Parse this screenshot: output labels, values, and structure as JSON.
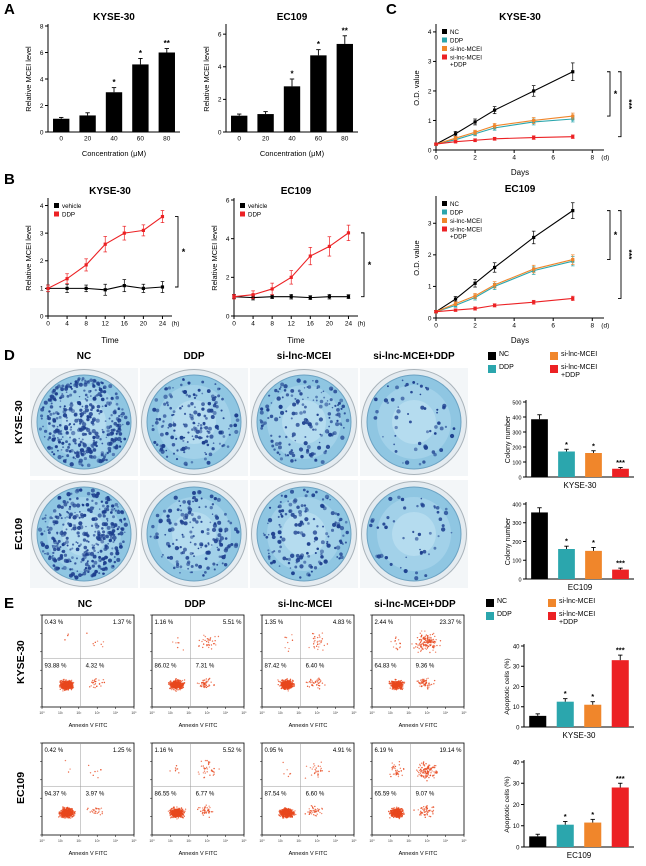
{
  "figure": {
    "panel_labels": {
      "A": "A",
      "B": "B",
      "C": "C",
      "D": "D",
      "E": "E"
    }
  },
  "conditions": [
    "NC",
    "DDP",
    "si-lnc-MCEI",
    "si-lnc-MCEI+DDP"
  ],
  "cell_lines": [
    "KYSE-30",
    "EC109"
  ],
  "colors": {
    "nc": "#000000",
    "ddp": "#2ba6ad",
    "si_lnc_mcei": "#f0862b",
    "si_lnc_mcei_ddp": "#ec2124",
    "flow_dots": "#e8481e",
    "colony_dots": "#1d3f8e",
    "dish_base": "#8fc6e2"
  },
  "legends": {
    "condition_legend": {
      "items": [
        {
          "label": "NC",
          "color": "#000000"
        },
        {
          "label": "DDP",
          "color": "#2ba6ad"
        },
        {
          "label": "si-lnc-MCEI",
          "color": "#f0862b"
        },
        {
          "label": "si-lnc-MCEI",
          "label2": "+DDP",
          "color": "#ec2124"
        }
      ]
    }
  },
  "chart_data": [
    {
      "id": "A_KYSE30",
      "type": "bar",
      "title": "KYSE-30",
      "ylabel": "Relative MCEI level",
      "xlabel": "Concentration (μM)",
      "categories": [
        "0",
        "20",
        "40",
        "60",
        "80"
      ],
      "values": [
        1.0,
        1.25,
        3.0,
        5.1,
        6.0
      ],
      "errors": [
        0.1,
        0.2,
        0.35,
        0.45,
        0.3
      ],
      "sig": [
        "",
        "",
        "*",
        "*",
        "**"
      ],
      "ylim": [
        0,
        8
      ],
      "yticks": [
        0,
        2,
        4,
        6,
        8
      ],
      "bar_color": "#000000"
    },
    {
      "id": "A_EC109",
      "type": "bar",
      "title": "EC109",
      "ylabel": "Relative MCEI level",
      "xlabel": "Concentration (μM)",
      "categories": [
        "0",
        "20",
        "40",
        "60",
        "80"
      ],
      "values": [
        1.0,
        1.1,
        2.8,
        4.7,
        5.4
      ],
      "errors": [
        0.1,
        0.15,
        0.45,
        0.35,
        0.5
      ],
      "sig": [
        "",
        "",
        "*",
        "*",
        "**"
      ],
      "ylim": [
        0,
        6.5
      ],
      "yticks": [
        0,
        2,
        4,
        6
      ],
      "bar_color": "#000000"
    },
    {
      "id": "B_KYSE30",
      "type": "line",
      "title": "KYSE-30",
      "ylabel": "Relative MCEI level",
      "xlabel": "Time",
      "xunit": "(h)",
      "x": [
        0,
        4,
        8,
        12,
        16,
        20,
        24
      ],
      "xticks": [
        0,
        4,
        8,
        12,
        16,
        20,
        24
      ],
      "xlim": [
        0,
        26
      ],
      "ylim": [
        0,
        4.2
      ],
      "yticks": [
        0,
        1,
        2,
        3,
        4
      ],
      "series": [
        {
          "name": "vehicle",
          "color": "#000000",
          "values": [
            1.0,
            1.0,
            1.0,
            0.95,
            1.1,
            1.0,
            1.05
          ],
          "errors": [
            0.12,
            0.15,
            0.12,
            0.2,
            0.22,
            0.15,
            0.2
          ]
        },
        {
          "name": "DDP",
          "color": "#ec2124",
          "values": [
            1.0,
            1.35,
            1.85,
            2.6,
            3.0,
            3.1,
            3.6
          ],
          "errors": [
            0.12,
            0.18,
            0.22,
            0.28,
            0.25,
            0.2,
            0.22
          ]
        }
      ],
      "sig": [
        {
          "series": [
            0,
            1
          ],
          "label": "*"
        }
      ]
    },
    {
      "id": "B_EC109",
      "type": "line",
      "title": "EC109",
      "ylabel": "Relative MCEI level",
      "xlabel": "Time",
      "xunit": "(h)",
      "x": [
        0,
        4,
        8,
        12,
        16,
        20,
        24
      ],
      "xticks": [
        0,
        4,
        8,
        12,
        16,
        20,
        24
      ],
      "xlim": [
        0,
        26
      ],
      "ylim": [
        0,
        6
      ],
      "yticks": [
        0,
        2,
        4,
        6
      ],
      "series": [
        {
          "name": "vehicle",
          "color": "#000000",
          "values": [
            1.0,
            0.95,
            1.0,
            1.0,
            0.95,
            1.0,
            1.0
          ],
          "errors": [
            0.1,
            0.12,
            0.1,
            0.12,
            0.1,
            0.12,
            0.1
          ]
        },
        {
          "name": "DDP",
          "color": "#ec2124",
          "values": [
            1.0,
            1.1,
            1.4,
            2.0,
            3.1,
            3.6,
            4.3
          ],
          "errors": [
            0.12,
            0.2,
            0.3,
            0.35,
            0.45,
            0.5,
            0.4
          ]
        }
      ],
      "sig": [
        {
          "series": [
            0,
            1
          ],
          "label": "*"
        }
      ]
    },
    {
      "id": "C_KYSE30",
      "type": "line",
      "title": "KYSE-30",
      "ylabel": "O.D. value",
      "xlabel": "Days",
      "xunit": "(d)",
      "x": [
        0,
        1,
        2,
        3,
        5,
        7
      ],
      "xticks": [
        0,
        2,
        4,
        6,
        8
      ],
      "xlim": [
        0,
        8.6
      ],
      "ylim": [
        0,
        4.2
      ],
      "yticks": [
        0,
        1,
        2,
        3,
        4
      ],
      "series": [
        {
          "name": "NC",
          "color": "#000000",
          "values": [
            0.2,
            0.55,
            0.95,
            1.35,
            2.0,
            2.65
          ],
          "errors": [
            0.04,
            0.08,
            0.1,
            0.12,
            0.18,
            0.3
          ]
        },
        {
          "name": "DDP",
          "color": "#2ba6ad",
          "values": [
            0.2,
            0.35,
            0.55,
            0.75,
            0.95,
            1.05
          ],
          "errors": [
            0.04,
            0.06,
            0.07,
            0.08,
            0.1,
            0.1
          ]
        },
        {
          "name": "si-lnc-MCEI",
          "color": "#f0862b",
          "values": [
            0.2,
            0.4,
            0.6,
            0.82,
            1.0,
            1.15
          ],
          "errors": [
            0.04,
            0.06,
            0.07,
            0.08,
            0.1,
            0.1
          ]
        },
        {
          "name": "si-lnc-MCEI+DDP",
          "color": "#ec2124",
          "values": [
            0.2,
            0.28,
            0.33,
            0.38,
            0.42,
            0.45
          ],
          "errors": [
            0.03,
            0.04,
            0.05,
            0.05,
            0.06,
            0.06
          ]
        }
      ],
      "sig": [
        {
          "series": [
            0,
            2
          ],
          "label": "*"
        },
        {
          "series": [
            0,
            3
          ],
          "label": "***"
        }
      ]
    },
    {
      "id": "C_EC109",
      "type": "line",
      "title": "EC109",
      "ylabel": "O.D. value",
      "xlabel": "Days",
      "xunit": "(d)",
      "x": [
        0,
        1,
        2,
        3,
        5,
        7
      ],
      "xticks": [
        0,
        2,
        4,
        6,
        8
      ],
      "xlim": [
        0,
        8.6
      ],
      "ylim": [
        0,
        3.8
      ],
      "yticks": [
        0,
        1,
        2,
        3
      ],
      "series": [
        {
          "name": "NC",
          "color": "#000000",
          "values": [
            0.2,
            0.6,
            1.1,
            1.6,
            2.55,
            3.4
          ],
          "errors": [
            0.04,
            0.08,
            0.12,
            0.15,
            0.2,
            0.25
          ]
        },
        {
          "name": "DDP",
          "color": "#2ba6ad",
          "values": [
            0.2,
            0.4,
            0.65,
            1.0,
            1.5,
            1.8
          ],
          "errors": [
            0.04,
            0.06,
            0.08,
            0.1,
            0.12,
            0.15
          ]
        },
        {
          "name": "si-lnc-MCEI",
          "color": "#f0862b",
          "values": [
            0.2,
            0.45,
            0.7,
            1.05,
            1.55,
            1.85
          ],
          "errors": [
            0.04,
            0.06,
            0.08,
            0.1,
            0.12,
            0.15
          ]
        },
        {
          "name": "si-lnc-MCEI+DDP",
          "color": "#ec2124",
          "values": [
            0.2,
            0.25,
            0.3,
            0.4,
            0.5,
            0.62
          ],
          "errors": [
            0.03,
            0.04,
            0.05,
            0.05,
            0.06,
            0.07
          ]
        }
      ],
      "sig": [
        {
          "series": [
            0,
            2
          ],
          "label": "*"
        },
        {
          "series": [
            0,
            3
          ],
          "label": "***"
        }
      ]
    },
    {
      "id": "D_KYSE30",
      "type": "bar",
      "title_below": "KYSE-30",
      "ylabel": "Colony number",
      "values": [
        385,
        170,
        160,
        55
      ],
      "errors": [
        30,
        15,
        15,
        8
      ],
      "sig": [
        "",
        "*",
        "*",
        "***"
      ],
      "ylim": [
        0,
        500
      ],
      "yticks": [
        0,
        100,
        200,
        300,
        400,
        500
      ],
      "colors": [
        "#000000",
        "#2ba6ad",
        "#f0862b",
        "#ec2124"
      ]
    },
    {
      "id": "D_EC109",
      "type": "bar",
      "title_below": "EC109",
      "ylabel": "Colony number",
      "values": [
        355,
        160,
        150,
        50
      ],
      "errors": [
        25,
        15,
        18,
        8
      ],
      "sig": [
        "",
        "*",
        "*",
        "***"
      ],
      "ylim": [
        0,
        400
      ],
      "yticks": [
        0,
        100,
        200,
        300,
        400
      ],
      "colors": [
        "#000000",
        "#2ba6ad",
        "#f0862b",
        "#ec2124"
      ]
    },
    {
      "id": "E_KYSE30",
      "type": "bar",
      "title_below": "KYSE-30",
      "ylabel": "Apoptotic cells (%)",
      "values": [
        5.5,
        12.5,
        11,
        33
      ],
      "errors": [
        1,
        1.5,
        1.5,
        2.5
      ],
      "sig": [
        "",
        "*",
        "*",
        "***"
      ],
      "ylim": [
        0,
        40
      ],
      "yticks": [
        0,
        10,
        20,
        30,
        40
      ],
      "colors": [
        "#000000",
        "#2ba6ad",
        "#f0862b",
        "#ec2124"
      ]
    },
    {
      "id": "E_EC109",
      "type": "bar",
      "title_below": "EC109",
      "ylabel": "Apoptotic cells (%)",
      "values": [
        5,
        10.5,
        11.5,
        28
      ],
      "errors": [
        1,
        1.5,
        1.5,
        2
      ],
      "sig": [
        "",
        "*",
        "*",
        "***"
      ],
      "ylim": [
        0,
        40
      ],
      "yticks": [
        0,
        10,
        20,
        30,
        40
      ],
      "colors": [
        "#000000",
        "#2ba6ad",
        "#f0862b",
        "#ec2124"
      ]
    }
  ],
  "colony_assay": {
    "rows": [
      {
        "cell_line": "KYSE-30",
        "dishes": [
          {
            "condition": "NC",
            "colonies": 385
          },
          {
            "condition": "DDP",
            "colonies": 170
          },
          {
            "condition": "si-lnc-MCEI",
            "colonies": 160
          },
          {
            "condition": "si-lnc-MCEI+DDP",
            "colonies": 55
          }
        ]
      },
      {
        "cell_line": "EC109",
        "dishes": [
          {
            "condition": "NC",
            "colonies": 355
          },
          {
            "condition": "DDP",
            "colonies": 160
          },
          {
            "condition": "si-lnc-MCEI",
            "colonies": 150
          },
          {
            "condition": "si-lnc-MCEI+DDP",
            "colonies": 50
          }
        ]
      }
    ]
  },
  "flow_cytometry": {
    "xlabel": "Annexin V FITC",
    "x_ticks": [
      "10⁰",
      "10¹",
      "10²",
      "10³",
      "10⁴",
      "10⁵"
    ],
    "rows": [
      {
        "cell_line": "KYSE-30",
        "plots": [
          {
            "condition": "NC",
            "ul": "0.43 %",
            "ur": "1.37 %",
            "ll": "93.88 %",
            "lr": "4.32 %"
          },
          {
            "condition": "DDP",
            "ul": "1.16 %",
            "ur": "5.51 %",
            "ll": "86.02 %",
            "lr": "7.31 %"
          },
          {
            "condition": "si-lnc-MCEI",
            "ul": "1.35 %",
            "ur": "4.83 %",
            "ll": "87.42 %",
            "lr": "6.40 %"
          },
          {
            "condition": "si-lnc-MCEI+DDP",
            "ul": "2.44 %",
            "ur": "23.37 %",
            "ll": "64.83 %",
            "lr": "9.36 %"
          }
        ]
      },
      {
        "cell_line": "EC109",
        "plots": [
          {
            "condition": "NC",
            "ul": "0.42 %",
            "ur": "1.25 %",
            "ll": "94.37 %",
            "lr": "3.97 %"
          },
          {
            "condition": "DDP",
            "ul": "1.16 %",
            "ur": "5.52 %",
            "ll": "86.55 %",
            "lr": "6.77 %"
          },
          {
            "condition": "si-lnc-MCEI",
            "ul": "0.95 %",
            "ur": "4.91 %",
            "ll": "87.54 %",
            "lr": "6.60 %"
          },
          {
            "condition": "si-lnc-MCEI+DDP",
            "ul": "6.19 %",
            "ur": "19.14 %",
            "ll": "65.59 %",
            "lr": "9.07 %"
          }
        ]
      }
    ]
  }
}
